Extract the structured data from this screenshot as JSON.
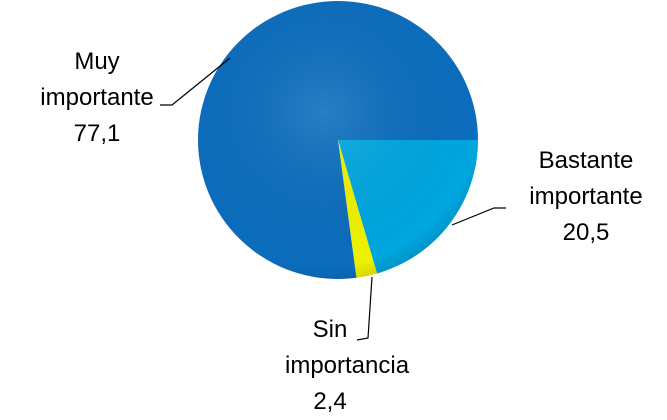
{
  "chart_data": {
    "type": "pie",
    "categories": [
      "Bastante importante",
      "Sin importancia",
      "Muy importante"
    ],
    "values": [
      20.5,
      2.4,
      77.1
    ],
    "value_labels": [
      "20,5",
      "2,4",
      "77,1"
    ],
    "colors": [
      "#00a6df",
      "#eef200",
      "#0b6dbd"
    ]
  }
}
